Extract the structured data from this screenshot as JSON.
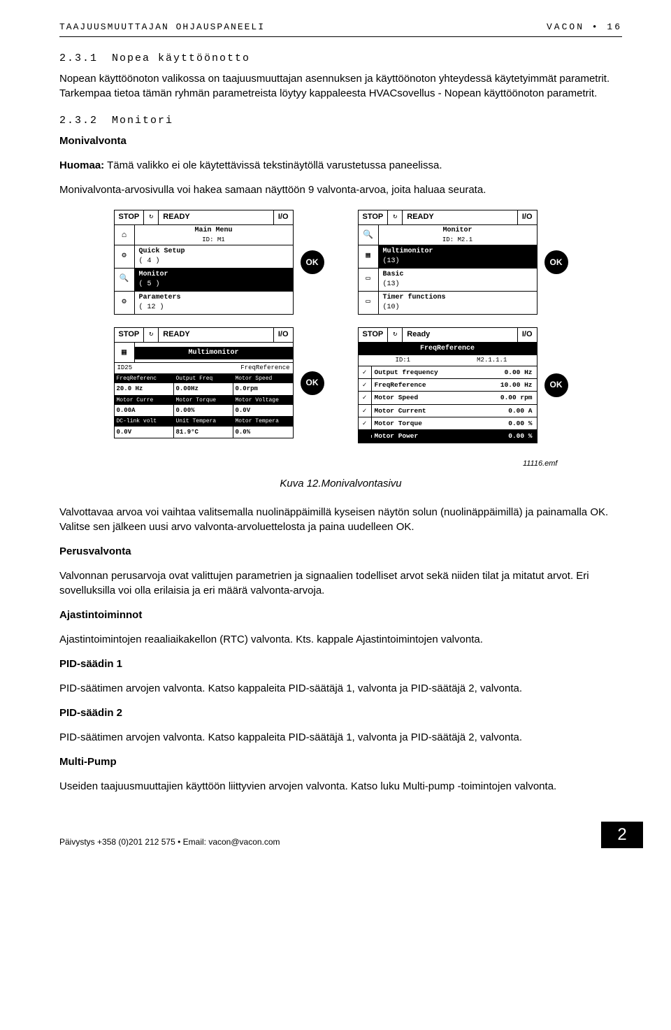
{
  "header": {
    "left": "Taajuusmuuttajan ohjauspaneeli",
    "right": "vacon • 16"
  },
  "sec231": {
    "num": "2.3.1",
    "title": "Nopea käyttöönotto",
    "para": "Nopean käyttöönoton valikossa on taajuusmuuttajan asennuksen ja käyttöönoton yhteydessä käytetyimmät parametrit. Tarkempaa tietoa tämän ryhmän parametreista löytyy kappaleesta HVACsovellus - Nopean käyttöönoton parametrit."
  },
  "sec232": {
    "num": "2.3.2",
    "title": "Monitori",
    "sub1": "Monivalvonta",
    "para1a": "Huomaa:",
    "para1b": " Tämä valikko ei ole käytettävissä tekstinäytöllä varustetussa paneelissa.",
    "para2": "Monivalvonta-arvosivulla voi hakea samaan näyttöön 9 valvonta-arvoa, joita haluaa seurata."
  },
  "status": {
    "stop": "STOP",
    "ready": "READY",
    "ready2": "Ready",
    "io": "I/O"
  },
  "ok": "OK",
  "screenA": {
    "title": "Main Menu",
    "id": "ID:",
    "id_val": "M1",
    "item1": "Quick Setup",
    "count1": "( 4 )",
    "item2": "Monitor",
    "count2": "( 5 )",
    "item3": "Parameters",
    "count3": "( 12 )"
  },
  "screenB": {
    "title": "Monitor",
    "id": "ID:",
    "id_val": "M2.1",
    "item1": "Multimonitor",
    "count1": "(13)",
    "item2": "Basic",
    "count2": "(13)",
    "item3": "Timer functions",
    "count3": "(10)"
  },
  "screenC": {
    "title": "Multimonitor",
    "sub_left": "ID25",
    "sub_right": "FreqReference",
    "cells": [
      {
        "h": "FreqReferenc",
        "v": "20.0 Hz"
      },
      {
        "h": "Output Freq",
        "v": "0.00Hz"
      },
      {
        "h": "Motor Speed",
        "v": "0.0rpm"
      },
      {
        "h": "Motor Curre",
        "v": "0.00A"
      },
      {
        "h": "Motor Torque",
        "v": "0.00%"
      },
      {
        "h": "Motor Voltage",
        "v": "0.0V"
      },
      {
        "h": "DC-link volt",
        "v": "0.0V"
      },
      {
        "h": "Unit Tempera",
        "v": "81.9°C"
      },
      {
        "h": "Motor Tempera",
        "v": "0.0%"
      }
    ]
  },
  "screenD": {
    "title": "FreqReference",
    "sub_left": "ID:1",
    "sub_right": "M2.1.1.1",
    "rows": [
      {
        "chk": "✓",
        "label": "Output frequency",
        "val": "0.00 Hz",
        "sel": false
      },
      {
        "chk": "✓",
        "label": "FreqReference",
        "val": "10.00 Hz",
        "sel": false
      },
      {
        "chk": "✓",
        "label": "Motor Speed",
        "val": "0.00 rpm",
        "sel": false
      },
      {
        "chk": "✓",
        "label": "Motor Current",
        "val": "0.00 A",
        "sel": false
      },
      {
        "chk": "✓",
        "label": "Motor Torque",
        "val": "0.00 %",
        "sel": false
      },
      {
        "chk": "",
        "label": "Motor Power",
        "val": "0.00 %",
        "sel": true
      }
    ]
  },
  "emf": "11116.emf",
  "caption": "Kuva 12.Monivalvontasivu",
  "after": {
    "p1": "Valvottavaa arvoa voi vaihtaa valitsemalla nuolinäppäimillä kyseisen näytön solun (nuolinäppäimillä) ja painamalla OK. Valitse sen jälkeen uusi arvo valvonta-arvoluettelosta ja paina uudelleen OK.",
    "h_perus": "Perusvalvonta",
    "p_perus": "Valvonnan perusarvoja ovat valittujen parametrien ja signaalien todelliset arvot sekä niiden tilat ja mitatut arvot. Eri sovelluksilla voi olla erilaisia ja eri määrä valvonta-arvoja.",
    "h_ajast": "Ajastintoiminnot",
    "p_ajast": "Ajastintoimintojen reaaliaikakellon (RTC) valvonta. Kts. kappale Ajastintoimintojen valvonta.",
    "h_pid1": "PID-säädin 1",
    "p_pid1": "PID-säätimen arvojen valvonta. Katso kappaleita PID-säätäjä 1, valvonta ja PID-säätäjä 2, valvonta.",
    "h_pid2": "PID-säädin 2",
    "p_pid2": "PID-säätimen arvojen valvonta. Katso kappaleita PID-säätäjä 1, valvonta ja PID-säätäjä 2, valvonta.",
    "h_mp": "Multi-Pump",
    "p_mp": "Useiden taajuusmuuttajien käyttöön liittyvien arvojen valvonta. Katso luku Multi-pump -toimintojen valvonta."
  },
  "footer": {
    "left": "Päivystys +358 (0)201 212 575 • Email: vacon@vacon.com",
    "page": "2"
  }
}
